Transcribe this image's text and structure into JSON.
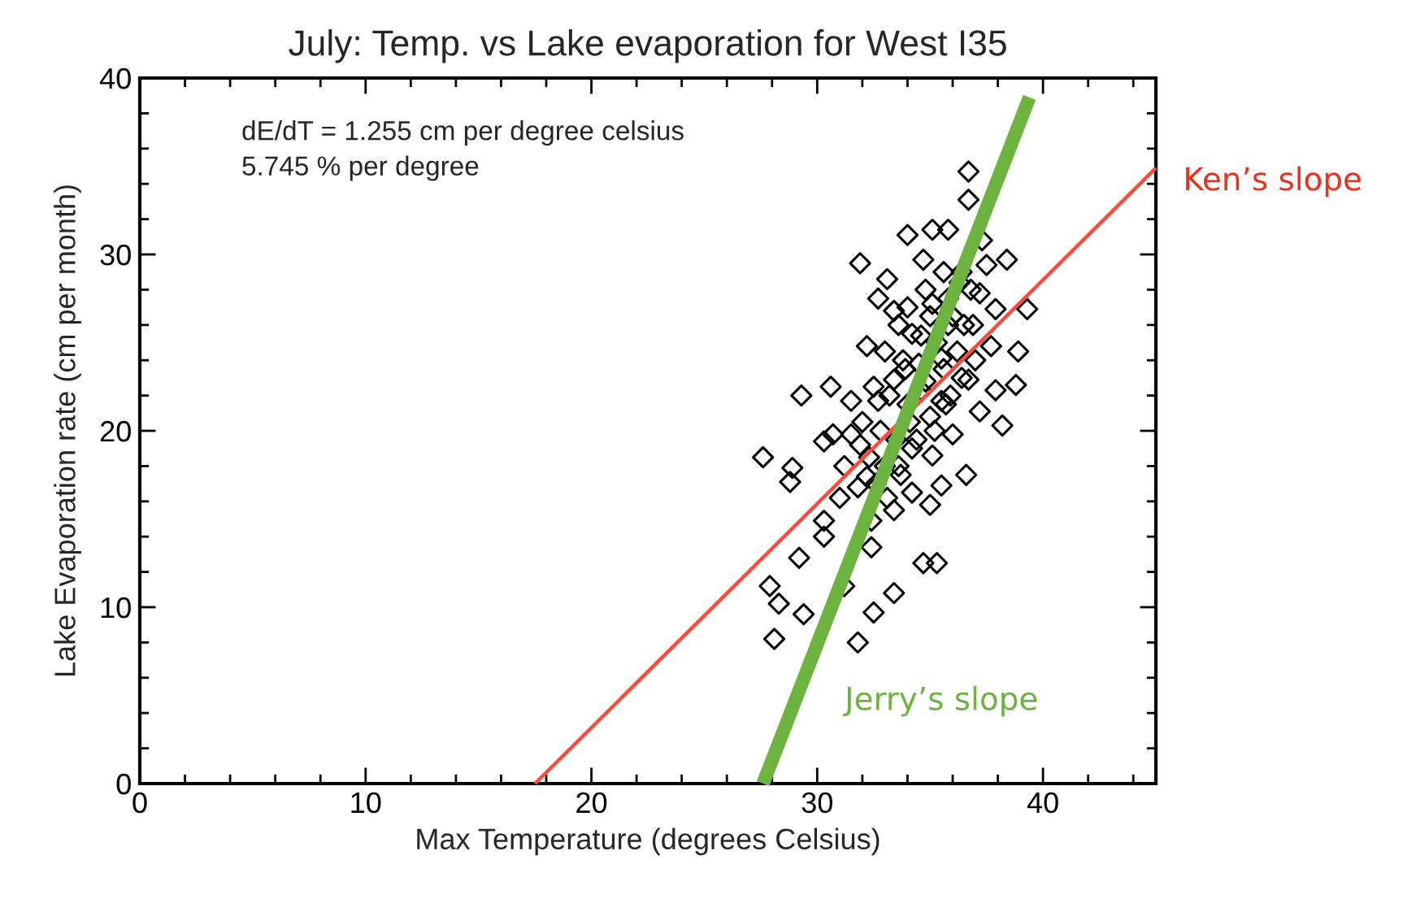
{
  "chart_data": {
    "type": "scatter",
    "title": "July: Temp. vs Lake evaporation for West I35",
    "xlabel": "Max Temperature (degrees Celsius)",
    "ylabel": "Lake Evaporation rate (cm per month)",
    "annotations": [
      "dE/dT = 1.255 cm per degree celsius",
      "5.745 % per degree"
    ],
    "xlim": [
      0,
      45
    ],
    "ylim": [
      0,
      40
    ],
    "xticks": [
      0,
      10,
      20,
      30,
      40
    ],
    "yticks": [
      0,
      10,
      20,
      30,
      40
    ],
    "grid": false,
    "legend": false,
    "series": [
      {
        "color": "#000000",
        "marker": "diamond",
        "x": [
          32.0,
          32.8,
          33.5,
          34.2,
          35.0,
          35.7,
          36.4,
          37.0,
          32.5,
          33.2,
          34.0,
          34.8,
          35.6,
          36.2,
          36.9,
          33.0,
          33.8,
          34.5,
          35.3,
          36.0,
          36.8,
          32.3,
          33.0,
          33.7,
          34.4,
          35.2,
          35.9,
          34.0,
          34.8,
          35.6,
          36.4,
          33.4,
          34.2,
          35.0,
          35.8,
          31.8,
          32.6,
          33.4,
          34.2,
          35.0,
          36.7,
          36.7,
          34.0,
          35.1,
          35.8,
          37.3,
          31.9,
          38.4,
          34.7,
          33.1,
          39.3,
          32.7,
          38.9,
          38.8,
          38.2,
          29.3,
          30.6,
          27.6,
          28.9,
          28.8,
          30.3,
          35.5,
          36.6,
          27.9,
          28.3,
          28.1,
          29.4,
          29.2,
          31.8,
          32.5,
          33.4,
          34.7,
          35.3,
          32.4,
          30.3,
          31.2,
          31.5,
          32.7,
          33.9,
          35.5,
          36.5,
          37.2,
          36.3,
          37.5,
          33.6,
          32.2,
          36.7,
          37.2,
          36.0,
          35.1,
          33.6,
          32.2,
          31.0,
          31.2,
          33.1,
          32.4,
          30.3,
          34.1,
          35.5,
          37.7,
          37.9,
          35.1,
          34.6,
          33.4,
          31.5,
          30.7,
          31.9,
          35.8,
          37.9,
          34.6
        ],
        "values": [
          20.5,
          20.0,
          19.5,
          19.0,
          20.8,
          21.5,
          23.0,
          24.0,
          22.5,
          22.0,
          21.5,
          22.8,
          23.5,
          24.5,
          26.0,
          24.5,
          24.0,
          23.8,
          25.0,
          26.5,
          28.0,
          18.5,
          18.0,
          17.5,
          19.5,
          20.0,
          22.0,
          27.0,
          28.0,
          29.0,
          29.0,
          26.8,
          25.5,
          26.5,
          27.5,
          16.8,
          17.0,
          15.5,
          16.5,
          15.8,
          34.7,
          33.1,
          31.1,
          31.4,
          31.4,
          30.8,
          29.5,
          29.7,
          29.7,
          28.6,
          26.9,
          27.5,
          24.5,
          22.6,
          20.3,
          22.0,
          22.5,
          18.5,
          17.9,
          17.1,
          19.4,
          16.9,
          17.5,
          11.2,
          10.2,
          8.2,
          9.6,
          12.8,
          8.0,
          9.7,
          10.8,
          12.5,
          12.5,
          13.4,
          14.0,
          11.2,
          19.8,
          21.7,
          23.5,
          24.1,
          26.0,
          27.8,
          28.4,
          29.4,
          26.0,
          24.8,
          22.9,
          21.1,
          19.8,
          18.6,
          18.0,
          17.4,
          16.2,
          18.0,
          16.2,
          14.9,
          14.9,
          20.5,
          21.7,
          24.8,
          26.9,
          27.2,
          25.4,
          22.9,
          21.7,
          19.8,
          19.2,
          26.0,
          22.3,
          22.3
        ]
      },
      {
        "type": "line",
        "name": "Ken’s slope",
        "color": "#ff4a3a",
        "x": [
          17.5,
          45
        ],
        "values": [
          0,
          34.9
        ]
      },
      {
        "type": "line",
        "name": "Jerry’s slope",
        "color": "#6cb33f",
        "x": [
          27.6,
          39.4
        ],
        "values": [
          0,
          38.9
        ]
      }
    ]
  }
}
